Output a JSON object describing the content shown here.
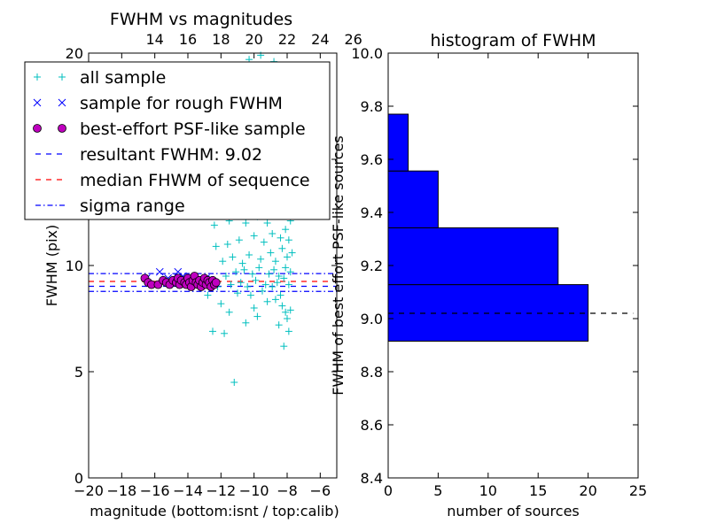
{
  "chart_data": [
    {
      "type": "scatter",
      "title": "FWHM vs magnitudes",
      "xlabel": "magnitude (bottom:isnt / top:calib)",
      "ylabel": "FWHM (pix)",
      "xlim": [
        -20,
        -5
      ],
      "ylim": [
        0,
        20
      ],
      "x_ticks": [
        "−20",
        "−18",
        "−16",
        "−14",
        "−12",
        "−10",
        "−8",
        "−6"
      ],
      "x_tick_values": [
        -20,
        -18,
        -16,
        -14,
        -12,
        -10,
        -8,
        -6
      ],
      "y_ticks": [
        "0",
        "5",
        "10",
        "15",
        "20"
      ],
      "y_tick_values": [
        0,
        5,
        10,
        15,
        20
      ],
      "top_ticks": [
        "14",
        "16",
        "18",
        "20",
        "22",
        "24",
        "26"
      ],
      "top_tick_values": [
        -16.0,
        -14.0,
        -12.0,
        -10.0,
        -8.0,
        -6.0,
        -4.0
      ],
      "legend": {
        "placement": "upper-left",
        "entries": [
          {
            "label": "all sample",
            "marker": "plus",
            "color": "#00bfbf"
          },
          {
            "label": "sample for rough FWHM",
            "marker": "x",
            "color": "#0000ff"
          },
          {
            "label": "best-effort PSF-like sample",
            "marker": "circle",
            "color": "#bf00bf"
          },
          {
            "label": "resultant FWHM: 9.02",
            "marker": "dashed",
            "color": "#0000ff"
          },
          {
            "label": "median FHWM of sequence",
            "marker": "dashed",
            "color": "#ff0000"
          },
          {
            "label": "sigma range",
            "marker": "dashdot",
            "color": "#0000ff"
          }
        ]
      },
      "hlines": [
        {
          "name": "resultant FWHM",
          "y": 9.02,
          "style": "dashed",
          "color": "#0000ff"
        },
        {
          "name": "median FHWM of sequence",
          "y": 9.25,
          "style": "dashed",
          "color": "#ff0000"
        },
        {
          "name": "sigma range upper",
          "y": 9.62,
          "style": "dashdot",
          "color": "#0000ff"
        },
        {
          "name": "sigma range lower",
          "y": 8.78,
          "style": "dashdot",
          "color": "#0000ff"
        }
      ],
      "series": [
        {
          "name": "all sample",
          "marker": "plus",
          "color": "#00bfbf",
          "points": [
            [
              -11.2,
              4.5
            ],
            [
              -12.5,
              6.9
            ],
            [
              -11.8,
              6.8
            ],
            [
              -8.2,
              6.2
            ],
            [
              -7.9,
              6.9
            ],
            [
              -10.5,
              7.3
            ],
            [
              -9.8,
              7.6
            ],
            [
              -8.5,
              7.2
            ],
            [
              -8.0,
              7.5
            ],
            [
              -11.5,
              7.8
            ],
            [
              -12.0,
              8.2
            ],
            [
              -10.0,
              8.0
            ],
            [
              -9.2,
              8.3
            ],
            [
              -8.3,
              8.1
            ],
            [
              -8.1,
              7.8
            ],
            [
              -7.8,
              7.9
            ],
            [
              -12.8,
              8.6
            ],
            [
              -11.0,
              8.7
            ],
            [
              -10.2,
              8.6
            ],
            [
              -9.5,
              8.8
            ],
            [
              -8.7,
              8.4
            ],
            [
              -8.4,
              8.6
            ],
            [
              -12.2,
              9.0
            ],
            [
              -11.4,
              9.1
            ],
            [
              -10.8,
              9.2
            ],
            [
              -10.4,
              9.0
            ],
            [
              -9.9,
              9.3
            ],
            [
              -9.3,
              9.1
            ],
            [
              -8.9,
              9.0
            ],
            [
              -8.6,
              9.2
            ],
            [
              -8.2,
              9.4
            ],
            [
              -7.9,
              9.1
            ],
            [
              -13.5,
              9.2
            ],
            [
              -13.0,
              9.4
            ],
            [
              -12.6,
              9.3
            ],
            [
              -11.7,
              9.5
            ],
            [
              -11.1,
              9.7
            ],
            [
              -10.6,
              9.8
            ],
            [
              -10.1,
              9.6
            ],
            [
              -9.7,
              9.9
            ],
            [
              -9.1,
              9.6
            ],
            [
              -8.8,
              9.8
            ],
            [
              -8.5,
              9.5
            ],
            [
              -8.1,
              9.9
            ],
            [
              -7.8,
              9.7
            ],
            [
              -11.9,
              10.2
            ],
            [
              -11.3,
              10.4
            ],
            [
              -10.7,
              10.1
            ],
            [
              -10.3,
              10.5
            ],
            [
              -9.6,
              10.3
            ],
            [
              -9.0,
              10.6
            ],
            [
              -8.7,
              10.2
            ],
            [
              -8.3,
              10.8
            ],
            [
              -8.0,
              10.4
            ],
            [
              -7.7,
              10.6
            ],
            [
              -12.3,
              10.9
            ],
            [
              -11.6,
              11.0
            ],
            [
              -10.9,
              11.2
            ],
            [
              -10.0,
              11.4
            ],
            [
              -9.4,
              11.1
            ],
            [
              -8.9,
              11.5
            ],
            [
              -8.4,
              11.3
            ],
            [
              -8.1,
              11.7
            ],
            [
              -7.9,
              11.2
            ],
            [
              -12.4,
              11.9
            ],
            [
              -11.5,
              12.1
            ],
            [
              -10.5,
              12.0
            ],
            [
              -9.8,
              12.3
            ],
            [
              -9.2,
              12.0
            ],
            [
              -8.6,
              12.4
            ],
            [
              -8.2,
              12.6
            ],
            [
              -7.8,
              12.1
            ],
            [
              -11.8,
              12.8
            ],
            [
              -10.8,
              13.0
            ],
            [
              -10.2,
              12.9
            ],
            [
              -9.5,
              13.1
            ],
            [
              -8.8,
              13.3
            ],
            [
              -8.5,
              12.9
            ],
            [
              -8.0,
              13.2
            ],
            [
              -12.1,
              13.6
            ],
            [
              -11.2,
              13.8
            ],
            [
              -10.4,
              13.7
            ],
            [
              -9.7,
              14.0
            ],
            [
              -9.0,
              13.9
            ],
            [
              -8.4,
              14.2
            ],
            [
              -7.9,
              13.8
            ],
            [
              -11.6,
              14.6
            ],
            [
              -10.6,
              14.9
            ],
            [
              -9.9,
              14.7
            ],
            [
              -9.3,
              15.1
            ],
            [
              -8.7,
              15.3
            ],
            [
              -8.2,
              14.9
            ],
            [
              -10.9,
              16.2
            ],
            [
              -10.1,
              16.6
            ],
            [
              -9.5,
              16.4
            ],
            [
              -8.9,
              17.0
            ],
            [
              -8.3,
              16.8
            ],
            [
              -9.8,
              18.2
            ],
            [
              -9.1,
              18.8
            ],
            [
              -8.6,
              18.5
            ],
            [
              -10.3,
              19.7
            ],
            [
              -9.6,
              19.9
            ],
            [
              -8.8,
              19.6
            ]
          ]
        },
        {
          "name": "sample for rough FWHM",
          "marker": "x",
          "color": "#0000ff",
          "points": [
            [
              -16.5,
              9.4
            ],
            [
              -15.7,
              9.7
            ],
            [
              -15.2,
              9.4
            ],
            [
              -14.6,
              9.7
            ],
            [
              -14.3,
              9.5
            ],
            [
              -13.9,
              9.3
            ],
            [
              -13.4,
              9.3
            ],
            [
              -12.9,
              9.4
            ],
            [
              -12.6,
              9.2
            ]
          ]
        },
        {
          "name": "best-effort PSF-like sample",
          "marker": "circle",
          "color": "#bf00bf",
          "points": [
            [
              -16.6,
              9.4
            ],
            [
              -16.4,
              9.2
            ],
            [
              -16.2,
              9.1
            ],
            [
              -15.8,
              9.1
            ],
            [
              -15.5,
              9.3
            ],
            [
              -15.3,
              9.2
            ],
            [
              -15.1,
              9.1
            ],
            [
              -14.9,
              9.3
            ],
            [
              -14.7,
              9.2
            ],
            [
              -14.6,
              9.4
            ],
            [
              -14.5,
              9.1
            ],
            [
              -14.4,
              9.3
            ],
            [
              -14.2,
              9.2
            ],
            [
              -14.1,
              9.1
            ],
            [
              -14.0,
              9.4
            ],
            [
              -13.9,
              9.2
            ],
            [
              -13.8,
              9.0
            ],
            [
              -13.7,
              9.3
            ],
            [
              -13.6,
              9.5
            ],
            [
              -13.5,
              9.2
            ],
            [
              -13.4,
              9.1
            ],
            [
              -13.3,
              9.3
            ],
            [
              -13.2,
              9.0
            ],
            [
              -13.1,
              9.2
            ],
            [
              -13.0,
              9.4
            ],
            [
              -12.9,
              9.1
            ],
            [
              -12.8,
              9.3
            ],
            [
              -12.7,
              9.2
            ],
            [
              -12.6,
              9.0
            ],
            [
              -12.5,
              9.3
            ],
            [
              -12.4,
              9.1
            ],
            [
              -12.3,
              9.2
            ]
          ]
        }
      ]
    },
    {
      "type": "bar",
      "orientation": "horizontal",
      "title": "histogram of FWHM",
      "xlabel": "number of sources",
      "ylabel": "FWHM of best effort PSF-like sources",
      "xlim": [
        0,
        25
      ],
      "ylim": [
        8.4,
        10.0
      ],
      "x_ticks": [
        "0",
        "5",
        "10",
        "15",
        "20",
        "25"
      ],
      "x_tick_values": [
        0,
        5,
        10,
        15,
        20,
        25
      ],
      "y_ticks": [
        "8.4",
        "8.6",
        "8.8",
        "9.0",
        "9.2",
        "9.4",
        "9.6",
        "9.8",
        "10.0"
      ],
      "y_tick_values": [
        8.4,
        8.6,
        8.8,
        9.0,
        9.2,
        9.4,
        9.6,
        9.8,
        10.0
      ],
      "bar_color": "#0000ff",
      "bins": [
        {
          "low": 8.915,
          "high": 9.128,
          "count": 20
        },
        {
          "low": 9.128,
          "high": 9.342,
          "count": 17
        },
        {
          "low": 9.342,
          "high": 9.556,
          "count": 5
        },
        {
          "low": 9.556,
          "high": 9.77,
          "count": 2
        }
      ],
      "hline": {
        "y": 9.02,
        "style": "dashed",
        "color": "#000000"
      }
    }
  ]
}
